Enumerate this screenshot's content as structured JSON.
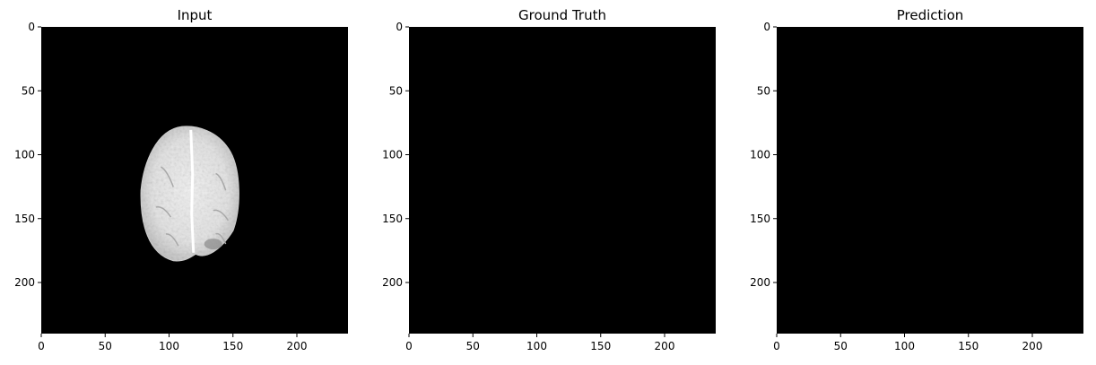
{
  "chart_data": [
    {
      "type": "heatmap",
      "title": "Input",
      "colormap": "gray",
      "xlim": [
        0,
        240
      ],
      "ylim": [
        240,
        0
      ],
      "xticks": [
        0,
        50,
        100,
        150,
        200
      ],
      "yticks": [
        0,
        50,
        100,
        150,
        200
      ],
      "content": "axial brain MRI slice, bright tissue roughly spanning x 78-156, y 78-183 on black background",
      "region": {
        "x_range": [
          78,
          156
        ],
        "y_range": [
          78,
          183
        ]
      }
    },
    {
      "type": "heatmap",
      "title": "Ground Truth",
      "colormap": "gray",
      "xlim": [
        0,
        240
      ],
      "ylim": [
        240,
        0
      ],
      "xticks": [
        0,
        50,
        100,
        150,
        200
      ],
      "yticks": [
        0,
        50,
        100,
        150,
        200
      ],
      "content": "all zeros (uniform black)"
    },
    {
      "type": "heatmap",
      "title": "Prediction",
      "colormap": "gray",
      "xlim": [
        0,
        240
      ],
      "ylim": [
        240,
        0
      ],
      "xticks": [
        0,
        50,
        100,
        150,
        200
      ],
      "yticks": [
        0,
        50,
        100,
        150,
        200
      ],
      "content": "all zeros (uniform black)"
    }
  ],
  "colors": {
    "background": "#ffffff",
    "image_bg": "#000000",
    "tissue": "#e8e8e8"
  }
}
